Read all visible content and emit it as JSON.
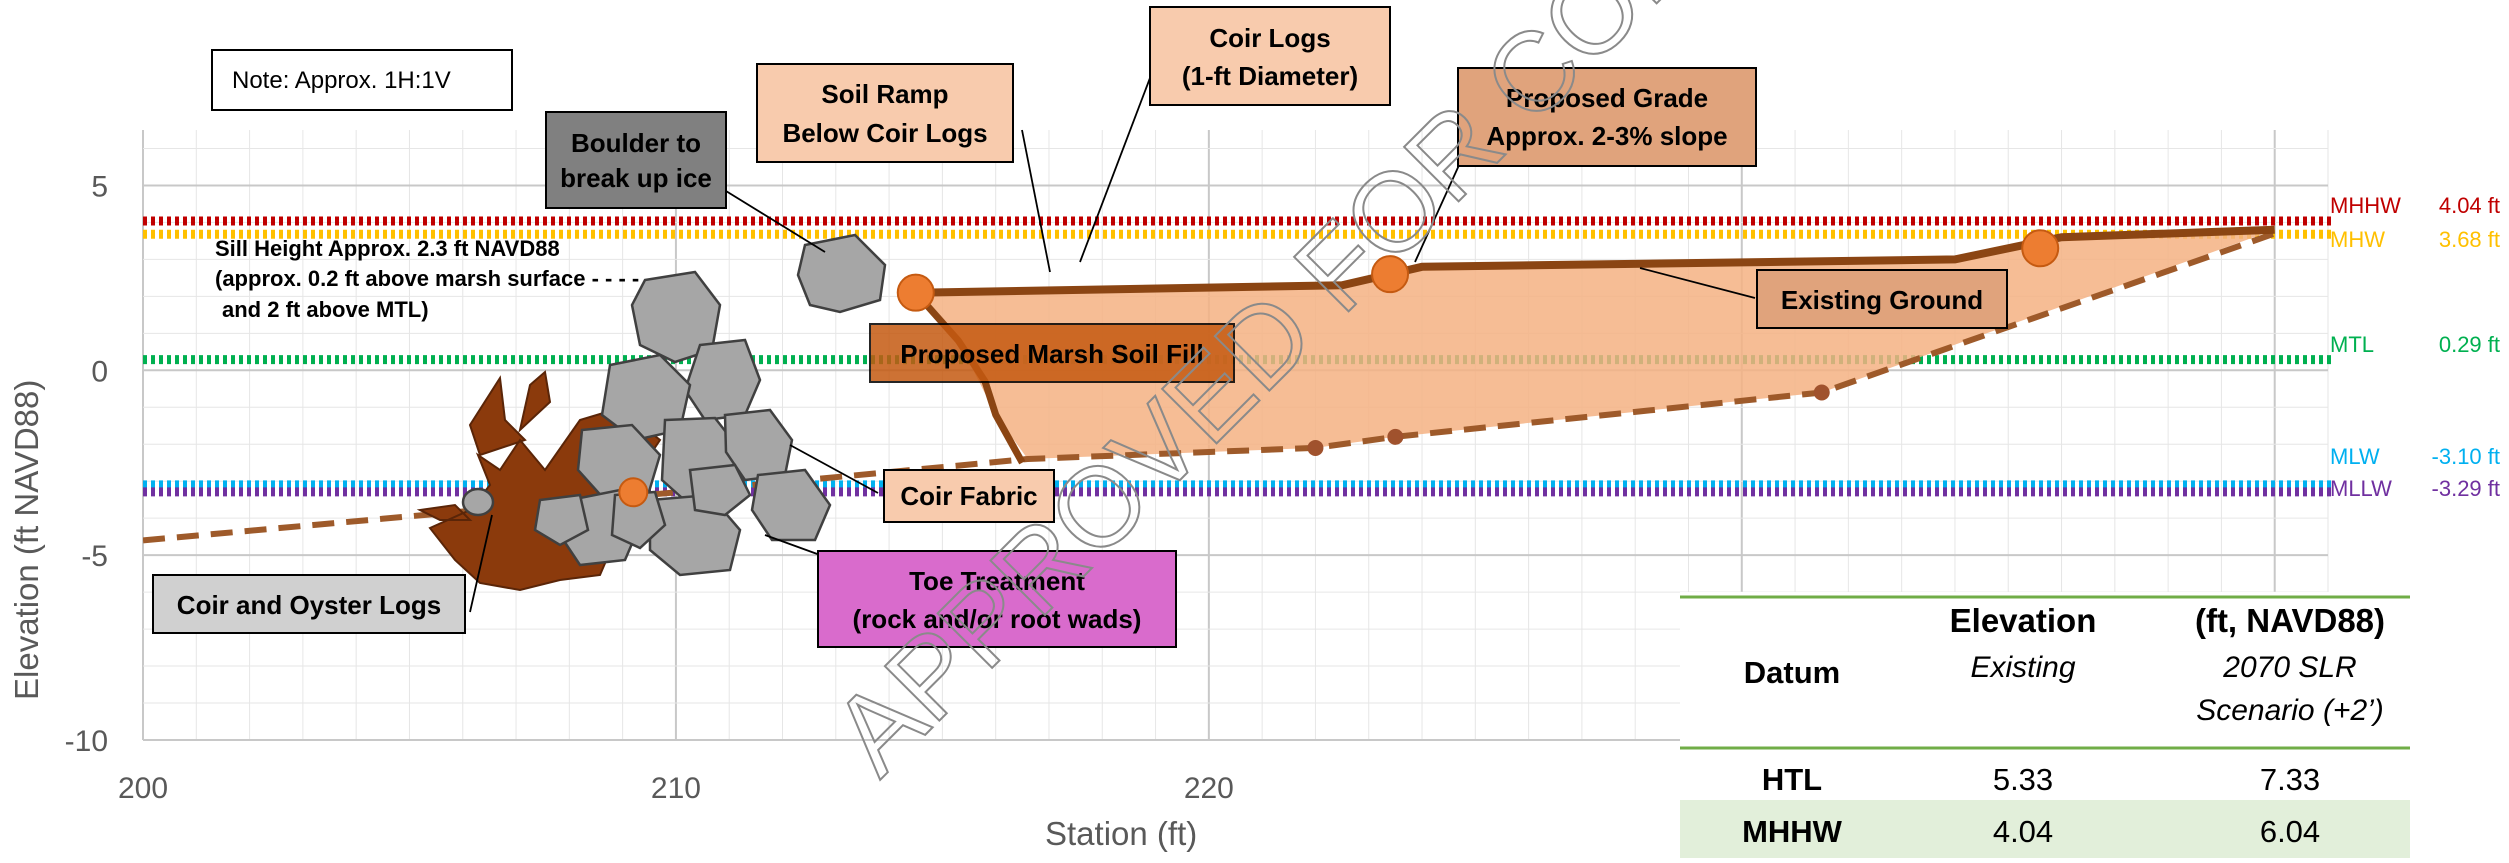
{
  "note": "Note: Approx. 1H:1V",
  "chart_data": {
    "type": "line",
    "xlabel": "Station (ft)",
    "ylabel": "Elevation (ft NAVD88)",
    "xlim": [
      200,
      241
    ],
    "ylim": [
      -10,
      6.5
    ],
    "x_ticks": [
      200,
      210,
      220,
      230
    ],
    "y_ticks": [
      5,
      0,
      -5,
      -10
    ],
    "grid": true,
    "existing_ground": [
      [
        200,
        -4.6
      ],
      [
        210,
        -3.3
      ],
      [
        216.6,
        -2.4
      ],
      [
        222,
        -2.1
      ],
      [
        223.5,
        -1.8
      ],
      [
        231.5,
        -0.6
      ],
      [
        240,
        3.7
      ]
    ],
    "proposed_grade": [
      [
        214.5,
        2.1
      ],
      [
        222.5,
        2.3
      ],
      [
        224,
        2.8
      ],
      [
        234,
        3.0
      ],
      [
        236,
        3.6
      ],
      [
        240,
        3.8
      ]
    ],
    "coir_fabric": [
      [
        214.5,
        2.1
      ],
      [
        215.3,
        0.8
      ],
      [
        215.8,
        -0.3
      ],
      [
        216,
        -1.2
      ],
      [
        216.5,
        -2.5
      ]
    ],
    "fill_polygon": [
      [
        214.5,
        2.1
      ],
      [
        222.5,
        2.3
      ],
      [
        224,
        2.8
      ],
      [
        234,
        3.0
      ],
      [
        236,
        3.6
      ],
      [
        240,
        3.8
      ],
      [
        231.5,
        -0.6
      ],
      [
        223.5,
        -1.8
      ],
      [
        222,
        -2.1
      ],
      [
        216.6,
        -2.4
      ],
      [
        216,
        -1.2
      ],
      [
        215.3,
        0.8
      ]
    ],
    "orange_markers": [
      [
        214.5,
        2.1
      ],
      [
        223.4,
        2.6
      ],
      [
        235.6,
        3.3
      ],
      [
        209.2,
        -3.3
      ]
    ],
    "brown_markers": [
      [
        222,
        -2.1
      ],
      [
        223.5,
        -1.8
      ],
      [
        231.5,
        -0.6
      ]
    ],
    "water_levels": [
      {
        "name": "MHHW",
        "value": 4.04,
        "label": "4.04 ft",
        "color": "#c00000"
      },
      {
        "name": "MHW",
        "value": 3.68,
        "label": "3.68 ft",
        "color": "#ffc000"
      },
      {
        "name": "MTL",
        "value": 0.29,
        "label": "0.29 ft",
        "color": "#00b050"
      },
      {
        "name": "MLW",
        "value": -3.1,
        "label": "-3.10 ft",
        "color": "#00b0f0"
      },
      {
        "name": "MLLW",
        "value": -3.29,
        "label": "-3.29 ft",
        "color": "#7030a0"
      }
    ]
  },
  "callouts": {
    "boulder": "Boulder to break up ice",
    "soil_ramp": "Soil Ramp Below Coir Logs",
    "coir_logs": "Coir Logs (1-ft Diameter)",
    "proposed_grade": "Proposed Grade Approx. 2-3% slope",
    "existing_ground": "Existing Ground",
    "marsh_fill": "Proposed Marsh Soil Fill",
    "coir_fabric": "Coir Fabric",
    "toe_treatment": "Toe Treatment (rock and/or root wads)",
    "coir_oyster": "Coir and Oyster Logs",
    "sill_height": "Sill Height Approx. 2.3 ft NAVD88 (approx. 0.2 ft above marsh surface - - - and 2 ft above MTL)"
  },
  "table": {
    "col_datum": "Datum",
    "col_elev": "Elevation",
    "col_units": "(ft, NAVD88)",
    "sub_existing": "Existing",
    "sub_2070": "2070 SLR Scenario (+2’)",
    "rows": [
      {
        "datum": "HTL",
        "existing": "5.33",
        "future": "7.33"
      },
      {
        "datum": "MHHW",
        "existing": "4.04",
        "future": "6.04"
      }
    ]
  },
  "watermark": "APPROVED FOR CONSTRUCTION",
  "colors": {
    "ground": "#8b4513",
    "fill": "#f4b183",
    "marker": "#ed7d31",
    "rock": "#a6a6a6",
    "toe_box": "#d96bcc",
    "table_band": "#e2efda",
    "table_rule": "#70ad47"
  }
}
